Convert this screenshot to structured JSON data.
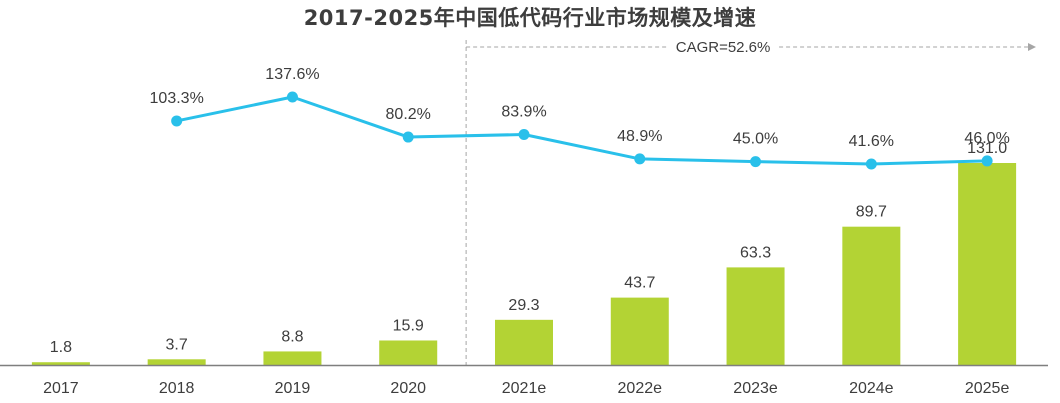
{
  "chart_data": {
    "type": "bar",
    "title": "2017-2025年中国低代码行业市场规模及增速",
    "categories": [
      "2017",
      "2018",
      "2019",
      "2020",
      "2021e",
      "2022e",
      "2023e",
      "2024e",
      "2025e"
    ],
    "series": [
      {
        "name": "市场规模",
        "type": "bar",
        "values": [
          1.8,
          3.7,
          8.8,
          15.9,
          29.3,
          43.7,
          63.3,
          89.7,
          131.0
        ],
        "labels": [
          "1.8",
          "3.7",
          "8.8",
          "15.9",
          "29.3",
          "43.7",
          "63.3",
          "89.7",
          "131.0"
        ],
        "color": "#b3d334"
      },
      {
        "name": "增速",
        "type": "line",
        "values": [
          null,
          103.3,
          137.6,
          80.2,
          83.9,
          48.9,
          45.0,
          41.6,
          46.0
        ],
        "labels": [
          "",
          "103.3%",
          "137.6%",
          "80.2%",
          "83.9%",
          "48.9%",
          "45.0%",
          "41.6%",
          "46.0%"
        ],
        "color": "#29c0ea"
      }
    ],
    "annotation": {
      "text": "CAGR=52.6%",
      "from_category": "2021e",
      "to_category": "2025e"
    },
    "xlabel": "",
    "ylabel": "",
    "ylim_bar": [
      0,
      131
    ],
    "ylim_line": [
      0,
      150
    ],
    "grid": false,
    "legend": "none"
  },
  "colors": {
    "bar": "#b3d334",
    "line": "#29c0ea",
    "text": "#3d3d3d",
    "axis": "#7f7f7f",
    "guide": "#a6a6a6"
  }
}
